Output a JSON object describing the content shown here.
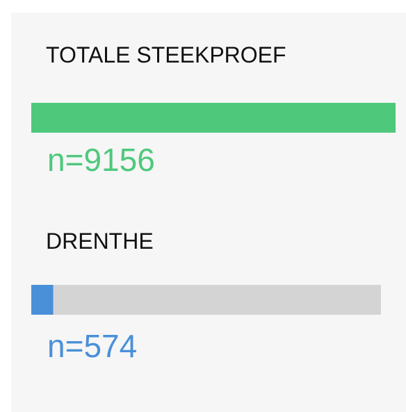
{
  "chart_data": {
    "type": "bar",
    "categories": [
      "TOTALE STEEKPROEF",
      "DRENTHE"
    ],
    "values": [
      9156,
      574
    ],
    "value_labels": [
      "n=9156",
      "n=574"
    ],
    "colors": [
      "#4ec97c",
      "#4a90d9"
    ],
    "track_color": "#d4d4d4"
  }
}
